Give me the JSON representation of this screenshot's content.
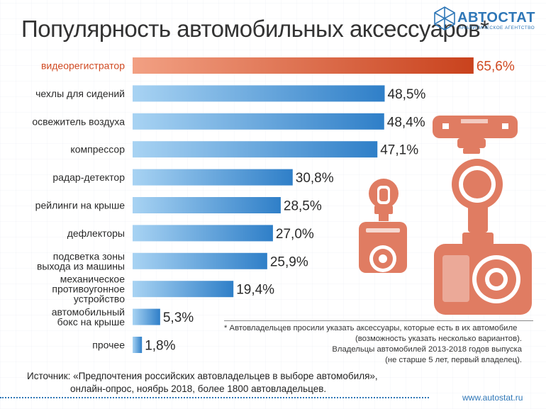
{
  "header": {
    "title": "Популярность автомобильных аксессуаров*",
    "logo_name": "АВТОСТАТ",
    "logo_subtitle": "АНАЛИТИЧЕСКОЕ АГЕНТСТВО"
  },
  "chart_data": {
    "type": "bar",
    "orientation": "horizontal",
    "title": "Популярность автомобильных аксессуаров*",
    "unit": "%",
    "categories": [
      [
        "видеорегистратор"
      ],
      [
        "чехлы для сидений"
      ],
      [
        "освежитель воздуха"
      ],
      [
        "компрессор"
      ],
      [
        "радар-детектор"
      ],
      [
        "рейлинги на крыше"
      ],
      [
        "дефлекторы"
      ],
      [
        "подсветка зоны",
        "выхода из машины"
      ],
      [
        "механическое",
        "противоугонное",
        "устройство"
      ],
      [
        "автомобильный",
        "бокс на крыше"
      ],
      [
        "прочее"
      ]
    ],
    "values": [
      65.6,
      48.5,
      48.4,
      47.1,
      30.8,
      28.5,
      27.0,
      25.9,
      19.4,
      5.3,
      1.8
    ],
    "value_labels": [
      "65,6%",
      "48,5%",
      "48,4%",
      "47,1%",
      "30,8%",
      "28,5%",
      "27,0%",
      "25,9%",
      "19,4%",
      "5,3%",
      "1,8%"
    ],
    "highlight_index": 0,
    "xlim": [
      0,
      70
    ],
    "colors": {
      "highlight_start": "#f2a083",
      "highlight_end": "#c9421d",
      "bar_start": "#a8d3f3",
      "bar_end": "#2f7fc8",
      "highlight_label": "#d04a22"
    }
  },
  "footnote": {
    "lines": [
      "* Автовладельцев просили указать аксессуары, которые есть в их автомобиле",
      "(возможность указать несколько вариантов).",
      "Владельцы автомобилей 2013-2018 годов выпуска",
      "(не старше 5 лет, первый владелец)."
    ]
  },
  "source": {
    "line1": "Источник: «Предпочтения российских автовладельцев в выборе автомобиля»,",
    "line2": "онлайн-опрос, ноябрь 2018, более 1800 автовладельцев."
  },
  "website": "www.autostat.ru",
  "illustration": {
    "name": "dashcam-illustrations",
    "color": "#e07c62"
  }
}
